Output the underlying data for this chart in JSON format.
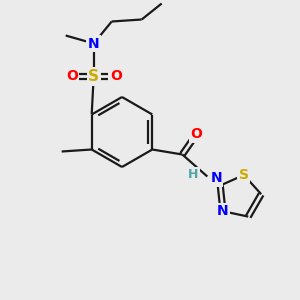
{
  "bg_color": "#ebebeb",
  "bond_color": "#1a1a1a",
  "colors": {
    "N": "#0000ff",
    "O": "#ff0000",
    "S": "#ccaa00",
    "H": "#4da6a6",
    "C": "#1a1a1a"
  },
  "figsize": [
    3.0,
    3.0
  ],
  "dpi": 100,
  "lw": 1.6
}
